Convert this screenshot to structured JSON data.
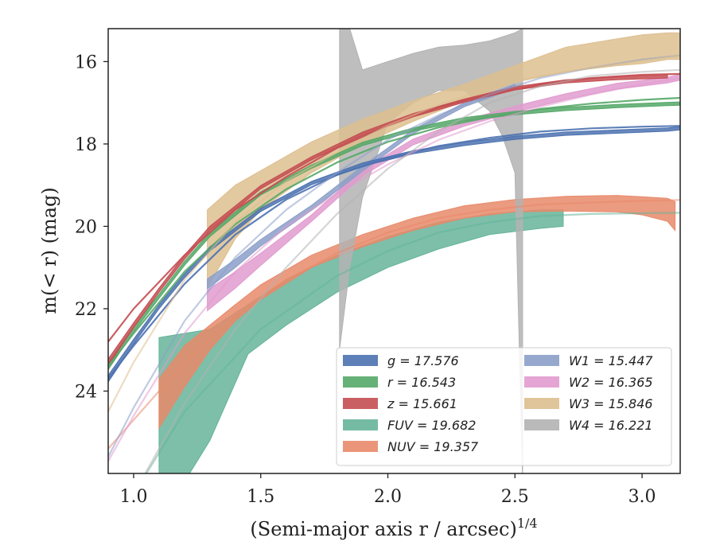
{
  "chart_data": {
    "type": "line",
    "xlabel": "(Semi-major axis r / arcsec)",
    "xlabel_var": "r",
    "xlabel_exp": "1/4",
    "ylabel": "m(< r) (mag)",
    "xlim": [
      0.9,
      3.15
    ],
    "ylim": [
      26.0,
      15.2
    ],
    "x_ticks": [
      1.0,
      1.5,
      2.0,
      2.5,
      3.0
    ],
    "x_tick_labels": [
      "1.0",
      "1.5",
      "2.0",
      "2.5",
      "3.0"
    ],
    "y_ticks": [
      16,
      18,
      20,
      22,
      24
    ],
    "y_tick_labels": [
      "16",
      "18",
      "20",
      "22",
      "24"
    ],
    "grid": false,
    "legend_position": "lower-right",
    "series": [
      {
        "name": "g",
        "label": "g = 17.576",
        "color": "#4c72b0",
        "band": {
          "x": [
            0.9,
            1.0,
            1.1,
            1.2,
            1.3,
            1.5,
            1.7,
            1.9,
            2.1,
            2.3,
            2.5,
            2.7,
            2.9,
            3.1,
            3.15
          ],
          "y": [
            23.7,
            22.8,
            21.95,
            21.2,
            20.55,
            19.6,
            18.95,
            18.5,
            18.2,
            18.0,
            17.85,
            17.75,
            17.7,
            17.65,
            17.62
          ],
          "hw": [
            0.08,
            0.06,
            0.05,
            0.05,
            0.05,
            0.04,
            0.04,
            0.04,
            0.04,
            0.04,
            0.04,
            0.04,
            0.04,
            0.04,
            0.04
          ]
        },
        "model": {
          "x": [
            0.9,
            1.0,
            1.2,
            1.4,
            1.6,
            1.8,
            2.0,
            2.2,
            2.4,
            2.6,
            2.8,
            3.0,
            3.15
          ],
          "y": [
            23.7,
            22.9,
            21.4,
            20.2,
            19.35,
            18.75,
            18.35,
            18.05,
            17.85,
            17.7,
            17.62,
            17.58,
            17.56
          ]
        }
      },
      {
        "name": "r",
        "label": "r = 16.543",
        "color": "#55a868",
        "band": {
          "x": [
            0.9,
            1.0,
            1.1,
            1.2,
            1.3,
            1.5,
            1.7,
            1.9,
            2.1,
            2.3,
            2.5,
            2.7,
            2.9,
            3.1,
            3.15
          ],
          "y": [
            23.4,
            22.5,
            21.7,
            20.9,
            20.2,
            19.2,
            18.55,
            18.0,
            17.65,
            17.4,
            17.25,
            17.15,
            17.08,
            17.03,
            17.02
          ],
          "hw": [
            0.08,
            0.06,
            0.05,
            0.05,
            0.05,
            0.04,
            0.04,
            0.04,
            0.04,
            0.04,
            0.04,
            0.04,
            0.04,
            0.04,
            0.04
          ]
        },
        "model": {
          "x": [
            0.9,
            1.0,
            1.2,
            1.4,
            1.6,
            1.8,
            2.0,
            2.2,
            2.4,
            2.6,
            2.8,
            3.0,
            3.15
          ],
          "y": [
            23.4,
            22.6,
            21.1,
            19.95,
            19.1,
            18.45,
            17.95,
            17.6,
            17.35,
            17.15,
            17.02,
            16.93,
            16.88
          ]
        }
      },
      {
        "name": "z",
        "label": "z = 15.661",
        "color": "#c44e52",
        "band": {
          "x": [
            0.9,
            1.0,
            1.1,
            1.2,
            1.3,
            1.5,
            1.7,
            1.9,
            2.1,
            2.3,
            2.5,
            2.7,
            2.9,
            3.1
          ],
          "y": [
            23.3,
            22.4,
            21.55,
            20.75,
            20.05,
            19.05,
            18.35,
            17.75,
            17.3,
            16.95,
            16.65,
            16.48,
            16.4,
            16.36
          ],
          "hw": [
            0.08,
            0.06,
            0.05,
            0.05,
            0.05,
            0.04,
            0.04,
            0.04,
            0.04,
            0.04,
            0.04,
            0.04,
            0.04,
            0.04
          ]
        },
        "model": {
          "x": [
            0.9,
            1.0,
            1.2,
            1.4,
            1.6,
            1.8,
            2.0,
            2.2,
            2.4,
            2.6,
            2.8,
            3.0,
            3.15
          ],
          "y": [
            22.8,
            22.0,
            20.7,
            19.6,
            18.8,
            18.1,
            17.55,
            17.1,
            16.8,
            16.55,
            16.4,
            16.32,
            16.3
          ]
        }
      },
      {
        "name": "FUV",
        "label": "FUV = 19.682",
        "color": "#66b49a",
        "band": {
          "x": [
            1.1,
            1.2,
            1.3,
            1.45,
            1.6,
            1.8,
            2.0,
            2.2,
            2.4,
            2.6,
            2.69
          ],
          "ylo": [
            22.7,
            22.6,
            22.5,
            21.9,
            21.3,
            20.7,
            20.25,
            19.9,
            19.7,
            19.6,
            19.6
          ],
          "yhi": [
            26.2,
            26.2,
            25.2,
            23.1,
            22.4,
            21.6,
            21.0,
            20.55,
            20.2,
            20.05,
            20.0
          ]
        },
        "model": {
          "x": [
            0.9,
            1.2,
            1.5,
            1.8,
            2.0,
            2.2,
            2.4,
            2.6,
            2.8,
            3.0,
            3.15
          ],
          "y": [
            27.5,
            24.5,
            22.5,
            21.2,
            20.6,
            20.15,
            19.9,
            19.75,
            19.7,
            19.68,
            19.67
          ]
        }
      },
      {
        "name": "NUV",
        "label": "NUV = 19.357",
        "color": "#e8896a",
        "band": {
          "x": [
            1.1,
            1.2,
            1.3,
            1.4,
            1.5,
            1.7,
            1.9,
            2.1,
            2.3,
            2.5,
            2.7,
            2.9,
            3.0,
            3.1,
            3.13
          ],
          "y": [
            24.3,
            23.4,
            22.7,
            22.1,
            21.6,
            20.85,
            20.35,
            19.95,
            19.65,
            19.5,
            19.45,
            19.45,
            19.5,
            19.6,
            19.75
          ],
          "hw": [
            0.6,
            0.5,
            0.3,
            0.2,
            0.18,
            0.15,
            0.15,
            0.15,
            0.15,
            0.15,
            0.18,
            0.2,
            0.22,
            0.28,
            0.35
          ]
        },
        "model": {
          "x": [
            0.9,
            1.0,
            1.2,
            1.4,
            1.6,
            1.8,
            2.0,
            2.2,
            2.4,
            2.6,
            2.8,
            3.0,
            3.15
          ],
          "y": [
            25.4,
            24.7,
            23.3,
            22.2,
            21.3,
            20.65,
            20.15,
            19.8,
            19.6,
            19.47,
            19.42,
            19.38,
            19.36
          ]
        }
      },
      {
        "name": "W1",
        "label": "W1 = 15.447",
        "color": "#8c9fc9",
        "band": {
          "x": [
            1.29,
            1.4,
            1.5,
            1.7,
            1.9,
            2.1,
            2.3,
            2.5
          ],
          "y": [
            21.4,
            20.9,
            20.4,
            19.55,
            18.6,
            17.7,
            17.05,
            16.6
          ],
          "hw": [
            0.12,
            0.1,
            0.08,
            0.06,
            0.06,
            0.05,
            0.05,
            0.05
          ]
        },
        "model": {
          "x": [
            0.9,
            1.0,
            1.2,
            1.4,
            1.6,
            1.8,
            2.0,
            2.2,
            2.4,
            2.6,
            2.8,
            3.0,
            3.15
          ],
          "y": [
            25.6,
            24.4,
            22.3,
            20.75,
            19.6,
            18.7,
            17.9,
            17.3,
            16.8,
            16.4,
            16.15,
            15.95,
            15.85
          ]
        }
      },
      {
        "name": "W2",
        "label": "W2 = 16.365",
        "color": "#e19bcf",
        "band": {
          "x": [
            1.29,
            1.4,
            1.5,
            1.7,
            1.9,
            2.1,
            2.3,
            2.5,
            2.7,
            2.9,
            3.1,
            3.15
          ],
          "y": [
            21.8,
            21.3,
            20.8,
            19.8,
            18.7,
            17.95,
            17.5,
            17.15,
            16.85,
            16.6,
            16.45,
            16.38
          ],
          "hw": [
            0.25,
            0.2,
            0.15,
            0.08,
            0.08,
            0.07,
            0.07,
            0.07,
            0.07,
            0.07,
            0.07,
            0.07
          ]
        },
        "model": {
          "x": [
            0.9,
            1.0,
            1.2,
            1.4,
            1.6,
            1.8,
            2.0,
            2.2,
            2.4,
            2.6,
            2.8,
            3.0,
            3.15
          ],
          "y": [
            25.7,
            24.6,
            22.6,
            21.1,
            20.0,
            19.2,
            18.5,
            17.9,
            17.45,
            17.1,
            16.8,
            16.55,
            16.4
          ]
        }
      },
      {
        "name": "W3",
        "label": "W3 = 15.846",
        "color": "#ddbf8f",
        "band": {
          "x": [
            1.29,
            1.4,
            1.5,
            1.7,
            1.9,
            2.1,
            2.3,
            2.5,
            2.7,
            2.9,
            3.0,
            3.1,
            3.15
          ],
          "ylo": [
            19.6,
            19.0,
            18.65,
            17.95,
            17.4,
            16.95,
            16.55,
            16.1,
            15.65,
            15.45,
            15.35,
            15.3,
            15.3
          ],
          "yhi": [
            21.5,
            20.3,
            19.6,
            18.7,
            18.0,
            17.45,
            16.95,
            16.5,
            16.25,
            16.1,
            16.05,
            15.95,
            15.95
          ]
        },
        "model": {
          "x": [
            0.9,
            1.0,
            1.2,
            1.4,
            1.6,
            1.8,
            2.0,
            2.2,
            2.4,
            2.6,
            2.8,
            3.0,
            3.15
          ],
          "y": [
            24.5,
            23.3,
            21.3,
            19.9,
            18.9,
            18.2,
            17.55,
            17.05,
            16.65,
            16.35,
            16.15,
            15.98,
            15.85
          ]
        }
      },
      {
        "name": "W4",
        "label": "W4 = 16.221",
        "color": "#b3b3b3",
        "band": {
          "x": [
            1.81,
            1.85,
            1.9,
            2.0,
            2.1,
            2.2,
            2.3,
            2.4,
            2.45,
            2.5,
            2.53
          ],
          "ylo": [
            15.0,
            15.2,
            16.2,
            16.0,
            15.8,
            15.65,
            15.6,
            15.5,
            15.4,
            15.3,
            15.2
          ],
          "yhi": [
            23.0,
            21.0,
            19.3,
            17.5,
            17.0,
            16.7,
            16.7,
            17.2,
            17.8,
            18.7,
            26.2
          ]
        },
        "model": {
          "x": [
            0.9,
            1.0,
            1.2,
            1.4,
            1.6,
            1.8,
            2.0,
            2.2,
            2.4,
            2.6,
            2.8,
            3.0,
            3.15
          ],
          "y": [
            27.8,
            26.5,
            24.3,
            22.5,
            21.0,
            19.7,
            18.6,
            17.7,
            17.0,
            16.6,
            16.35,
            16.25,
            16.2
          ]
        }
      }
    ]
  }
}
